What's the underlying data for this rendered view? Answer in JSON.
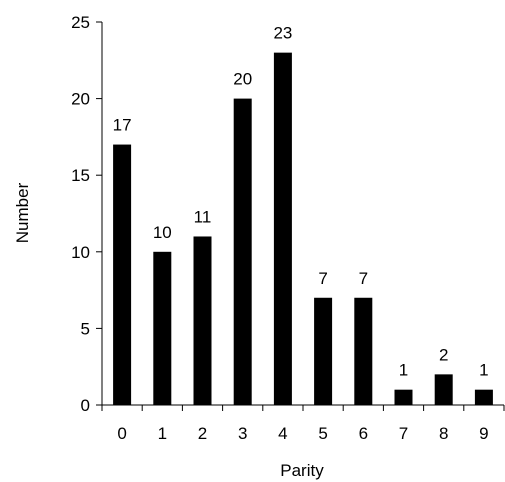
{
  "chart_data": {
    "type": "bar",
    "title": "",
    "xlabel": "Parity",
    "ylabel": "Number",
    "categories": [
      "0",
      "1",
      "2",
      "3",
      "4",
      "5",
      "6",
      "7",
      "8",
      "9"
    ],
    "values": [
      17,
      10,
      11,
      20,
      23,
      7,
      7,
      1,
      2,
      1
    ],
    "data_labels": [
      "17",
      "10",
      "11",
      "20",
      "23",
      "7",
      "7",
      "1",
      "2",
      "1"
    ],
    "yticks": [
      "0",
      "5",
      "10",
      "15",
      "20",
      "25"
    ],
    "ylim": [
      0,
      25
    ],
    "grid": false,
    "legend": "none",
    "bar_color": "#000000"
  }
}
